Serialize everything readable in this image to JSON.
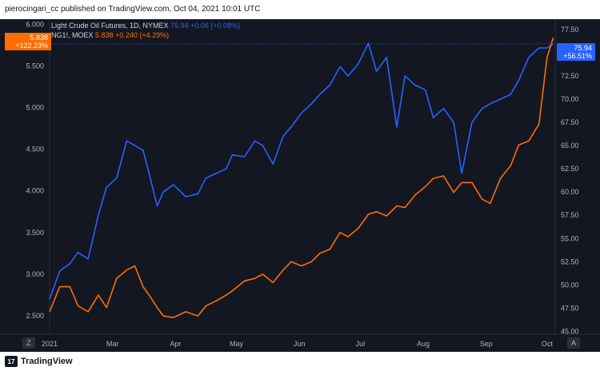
{
  "header": {
    "published_text": "pierocingari_cc published on TradingView.com, Oct 04, 2021 10:01 UTC"
  },
  "footer": {
    "brand": "TradingView",
    "logo_text": "17"
  },
  "legend": {
    "series1": {
      "name": "Light Crude Oil Futures, 1D, NYMEX",
      "price": "75.94",
      "change": "+0.06 (+0.08%)"
    },
    "series2": {
      "name": "NG1!, MOEX",
      "price": "5.838",
      "change": "+0.240 (+4.29%)"
    }
  },
  "left_tag": {
    "price": "5.838",
    "pct": "+122.23%"
  },
  "right_tag": {
    "price": "75.94",
    "pct": "+56.51%"
  },
  "corner_left": "Z",
  "corner_right": "A",
  "colors": {
    "background": "#131722",
    "blue": "#2962ff",
    "orange": "#ff6d00",
    "text": "#b2b5be"
  },
  "chart_data": {
    "type": "line",
    "title": "",
    "left_axis": {
      "ticks": [
        "6.000",
        "5.500",
        "5.000",
        "4.500",
        "4.000",
        "3.500",
        "3.000",
        "2.500"
      ],
      "ylim": [
        2.28,
        6.06
      ]
    },
    "right_axis": {
      "ticks": [
        "77.50",
        "75.00",
        "72.50",
        "70.00",
        "67.50",
        "65.00",
        "62.50",
        "60.00",
        "57.50",
        "55.00",
        "52.50",
        "50.00",
        "47.50",
        "45.00"
      ],
      "ylim": [
        44.7,
        78.6
      ]
    },
    "x_ticks": [
      "2021",
      "Mar",
      "Apr",
      "May",
      "Jun",
      "Jul",
      "Aug",
      "Sep",
      "Oct"
    ],
    "x_range": [
      "2021-01-29",
      "2021-10-05"
    ],
    "grid": false,
    "series": [
      {
        "name": "Light Crude Oil Futures",
        "axis": "right",
        "x": [
          "2021-01-29",
          "2021-02-03",
          "2021-02-08",
          "2021-02-12",
          "2021-02-17",
          "2021-02-22",
          "2021-02-26",
          "2021-03-03",
          "2021-03-08",
          "2021-03-12",
          "2021-03-16",
          "2021-03-19",
          "2021-03-23",
          "2021-03-26",
          "2021-03-31",
          "2021-04-06",
          "2021-04-12",
          "2021-04-16",
          "2021-04-21",
          "2021-04-26",
          "2021-04-29",
          "2021-05-05",
          "2021-05-10",
          "2021-05-14",
          "2021-05-19",
          "2021-05-24",
          "2021-05-28",
          "2021-06-02",
          "2021-06-07",
          "2021-06-11",
          "2021-06-16",
          "2021-06-21",
          "2021-06-25",
          "2021-06-30",
          "2021-07-05",
          "2021-07-09",
          "2021-07-14",
          "2021-07-19",
          "2021-07-23",
          "2021-07-28",
          "2021-08-02",
          "2021-08-06",
          "2021-08-11",
          "2021-08-16",
          "2021-08-20",
          "2021-08-25",
          "2021-08-30",
          "2021-09-03",
          "2021-09-08",
          "2021-09-13",
          "2021-09-17",
          "2021-09-22",
          "2021-09-27",
          "2021-10-01",
          "2021-10-04"
        ],
        "values": [
          48.5,
          51.5,
          52.3,
          53.5,
          52.8,
          57.5,
          60.5,
          61.5,
          65.5,
          65.0,
          64.5,
          62.0,
          58.5,
          60.0,
          60.8,
          59.5,
          59.8,
          61.5,
          62.0,
          62.5,
          64.0,
          63.8,
          65.5,
          65.0,
          63.0,
          66.0,
          67.0,
          68.5,
          69.5,
          70.5,
          71.5,
          73.5,
          72.5,
          73.8,
          76.0,
          73.0,
          74.5,
          67.0,
          72.5,
          71.5,
          71.0,
          68.0,
          69.0,
          67.5,
          62.0,
          67.5,
          69.0,
          69.5,
          70.0,
          70.5,
          72.0,
          74.5,
          75.5,
          75.5,
          75.94
        ]
      },
      {
        "name": "NG1!",
        "axis": "left",
        "x": [
          "2021-01-29",
          "2021-02-03",
          "2021-02-08",
          "2021-02-12",
          "2021-02-17",
          "2021-02-22",
          "2021-02-26",
          "2021-03-03",
          "2021-03-08",
          "2021-03-12",
          "2021-03-16",
          "2021-03-19",
          "2021-03-23",
          "2021-03-26",
          "2021-03-31",
          "2021-04-06",
          "2021-04-12",
          "2021-04-16",
          "2021-04-21",
          "2021-04-26",
          "2021-04-29",
          "2021-05-05",
          "2021-05-10",
          "2021-05-14",
          "2021-05-19",
          "2021-05-24",
          "2021-05-28",
          "2021-06-02",
          "2021-06-07",
          "2021-06-11",
          "2021-06-16",
          "2021-06-21",
          "2021-06-25",
          "2021-06-30",
          "2021-07-05",
          "2021-07-09",
          "2021-07-14",
          "2021-07-19",
          "2021-07-23",
          "2021-07-28",
          "2021-08-02",
          "2021-08-06",
          "2021-08-11",
          "2021-08-16",
          "2021-08-20",
          "2021-08-25",
          "2021-08-30",
          "2021-09-03",
          "2021-09-08",
          "2021-09-13",
          "2021-09-17",
          "2021-09-22",
          "2021-09-27",
          "2021-10-01",
          "2021-10-04"
        ],
        "values": [
          2.55,
          2.85,
          2.85,
          2.62,
          2.55,
          2.75,
          2.6,
          2.95,
          3.05,
          3.1,
          2.85,
          2.75,
          2.6,
          2.5,
          2.48,
          2.55,
          2.5,
          2.62,
          2.68,
          2.75,
          2.8,
          2.92,
          2.95,
          3.0,
          2.9,
          3.05,
          3.15,
          3.1,
          3.15,
          3.25,
          3.3,
          3.5,
          3.45,
          3.55,
          3.72,
          3.75,
          3.7,
          3.82,
          3.8,
          3.95,
          4.05,
          4.15,
          4.18,
          3.98,
          4.1,
          4.1,
          3.9,
          3.85,
          4.15,
          4.3,
          4.55,
          4.6,
          4.8,
          5.6,
          5.838
        ]
      }
    ]
  }
}
